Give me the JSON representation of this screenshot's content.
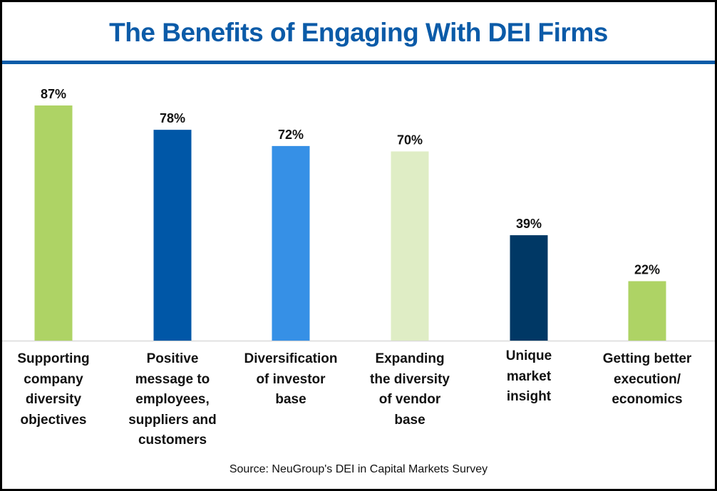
{
  "chart_data": {
    "type": "bar",
    "title": "The Benefits of Engaging With DEI Firms",
    "categories": [
      "Supporting company diversity objectives",
      "Positive message to employees, suppliers and customers",
      "Diversification of investor base",
      "Expanding the diversity of vendor base",
      "Unique market insight",
      "Getting better execution/ economics"
    ],
    "category_lines": [
      [
        "Supporting",
        "company",
        "diversity",
        "objectives"
      ],
      [
        "Positive",
        "message to",
        "employees,",
        "suppliers and",
        "customers"
      ],
      [
        "Diversification",
        "of investor",
        "base"
      ],
      [
        "Expanding",
        "the diversity",
        "of vendor",
        "base"
      ],
      [
        "Unique",
        "market",
        "insight"
      ],
      [
        "Getting better",
        "execution/",
        "economics"
      ]
    ],
    "values": [
      87,
      78,
      72,
      70,
      39,
      22
    ],
    "data_labels": [
      "87%",
      "78%",
      "72%",
      "70%",
      "39%",
      "22%"
    ],
    "colors": [
      "#AED365",
      "#0057A7",
      "#3690E6",
      "#DFEDC5",
      "#003865",
      "#AED365"
    ],
    "xlabel": "",
    "ylabel": "",
    "ylim": [
      0,
      87
    ],
    "grid": false,
    "source": "Source: NeuGroup's DEI in Capital Markets Survey"
  }
}
